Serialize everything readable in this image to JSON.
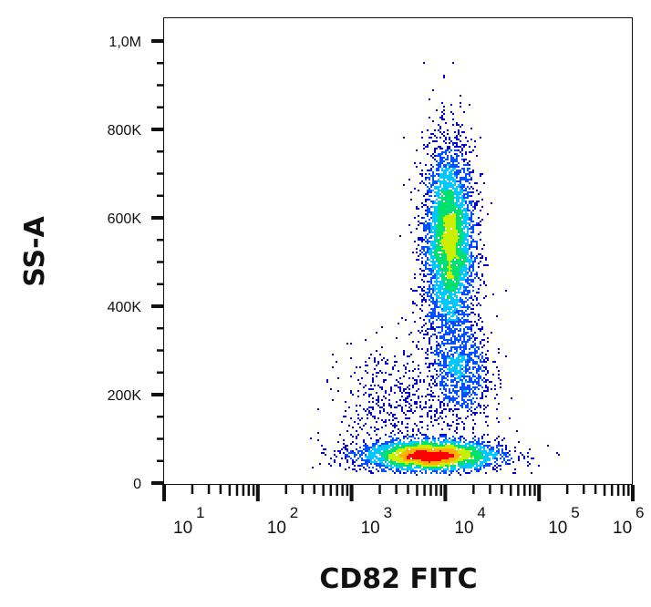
{
  "chart_data": {
    "type": "scatter",
    "subtype": "flow-cytometry-density-dot-plot",
    "xlabel": "CD82 FITC",
    "ylabel": "SS-A",
    "x_scale": "log",
    "xlim": [
      10,
      1000000
    ],
    "ylim": [
      0,
      1050000
    ],
    "x_ticks": [
      {
        "base": "10",
        "exp": "1",
        "value": 10
      },
      {
        "base": "10",
        "exp": "2",
        "value": 100
      },
      {
        "base": "10",
        "exp": "3",
        "value": 1000
      },
      {
        "base": "10",
        "exp": "4",
        "value": 10000
      },
      {
        "base": "10",
        "exp": "5",
        "value": 100000
      },
      {
        "base": "10",
        "exp": "6",
        "value": 1000000
      }
    ],
    "y_ticks": [
      {
        "label": "0",
        "value": 0
      },
      {
        "label": "200K",
        "value": 200000
      },
      {
        "label": "400K",
        "value": 400000
      },
      {
        "label": "600K",
        "value": 600000
      },
      {
        "label": "800K",
        "value": 800000
      },
      {
        "label": "1,0M",
        "value": 1000000
      }
    ],
    "grid": false,
    "color_scale": [
      "#0000c8",
      "#0050ff",
      "#00c8ff",
      "#00e070",
      "#c8f000",
      "#ffb000",
      "#ff0000"
    ],
    "populations": [
      {
        "x_center": 11000,
        "x_sd_decades": 0.14,
        "y_center": 540000,
        "y_sd": 115000,
        "events": 4200
      },
      {
        "x_center": 7000,
        "x_sd_decades": 0.38,
        "y_center": 62000,
        "y_sd": 18000,
        "events": 3200
      },
      {
        "x_center": 15000,
        "x_sd_decades": 0.16,
        "y_center": 250000,
        "y_sd": 60000,
        "events": 900
      },
      {
        "x_center": 3000,
        "x_sd_decades": 0.3,
        "y_center": 180000,
        "y_sd": 70000,
        "events": 500
      }
    ]
  }
}
